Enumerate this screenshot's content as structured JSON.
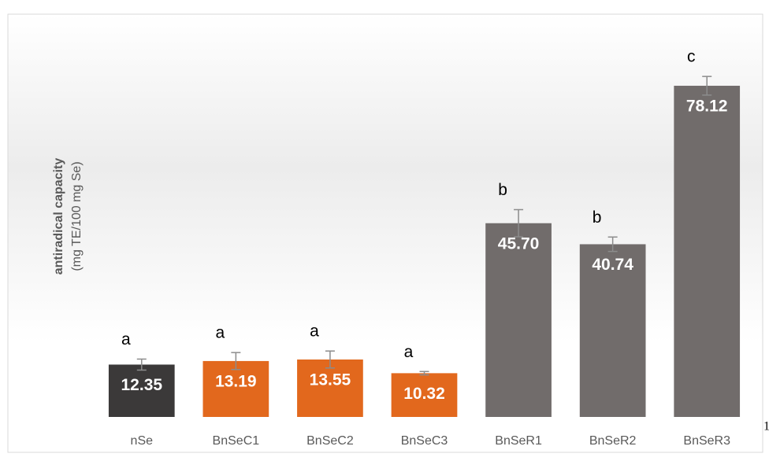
{
  "chart_data": {
    "type": "bar",
    "y_label": "antiradical capacity",
    "y_label_units": "(mg TE/100 mg Se)",
    "categories": [
      "nSe",
      "BnSeC1",
      "BnSeC2",
      "BnSeC3",
      "BnSeR1",
      "BnSeR2",
      "BnSeR3"
    ],
    "values": [
      12.35,
      13.19,
      13.55,
      10.32,
      45.7,
      40.74,
      78.12
    ],
    "value_labels": [
      "12.35",
      "13.19",
      "13.55",
      "10.32",
      "45.70",
      "40.74",
      "78.12"
    ],
    "errors": [
      1.3,
      2,
      2,
      0.4,
      3.2,
      1.7,
      2.2
    ],
    "annotations": [
      "a",
      "a",
      "a",
      "a",
      "b",
      "b",
      "c"
    ],
    "colors": [
      "#3b3939",
      "#e2681d",
      "#e2681d",
      "#e2681d",
      "#716c6b",
      "#716c6b",
      "#716c6b"
    ],
    "error_color": "#8c8c8c",
    "ylim": [
      0,
      90
    ],
    "corner_text": "1"
  }
}
